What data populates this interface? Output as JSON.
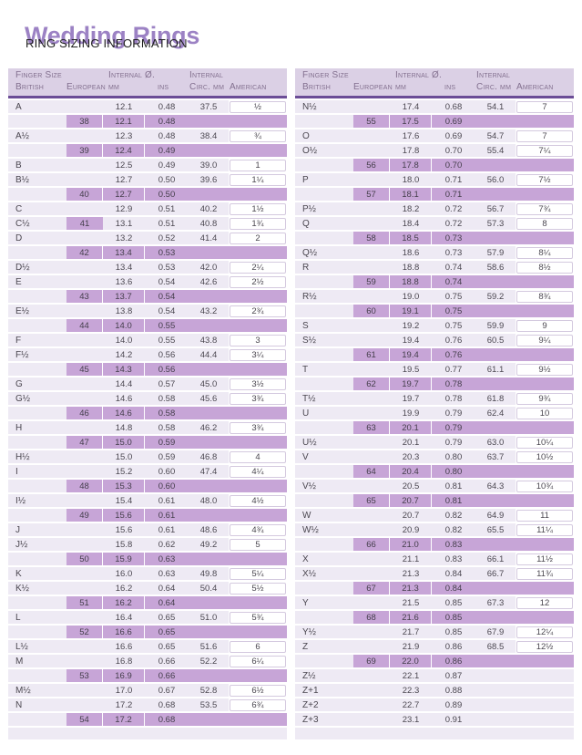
{
  "page": {
    "title": "Wedding Rings",
    "subtitle": "RING SIZING INFORMATION"
  },
  "colors": {
    "title": "#9c82c4",
    "header_bg": "#dbd0e5",
    "rule": "#6b4d96",
    "row_bg": "#eeeaf4",
    "band": "#c7a5d7"
  },
  "headers": {
    "finger_size": "Finger Size",
    "internal_diameter": "Internal Ø.",
    "internal": "Internal",
    "british": "British",
    "european": "European",
    "mm": "mm",
    "ins": "ins",
    "circ_mm": "Circ. mm",
    "american": "American"
  },
  "left_table_rows": [
    {
      "british": "A",
      "european": "",
      "mm": "12.1",
      "ins": "0.48",
      "circ": "37.5",
      "american": "½",
      "band": false
    },
    {
      "british": "",
      "european": "38",
      "mm": "12.1",
      "ins": "0.48",
      "circ": "",
      "american": "",
      "band": true
    },
    {
      "british": "A½",
      "european": "",
      "mm": "12.3",
      "ins": "0.48",
      "circ": "38.4",
      "american": "¾",
      "band": false
    },
    {
      "british": "",
      "european": "39",
      "mm": "12.4",
      "ins": "0.49",
      "circ": "",
      "american": "",
      "band": true
    },
    {
      "british": "B",
      "european": "",
      "mm": "12.5",
      "ins": "0.49",
      "circ": "39.0",
      "american": "1",
      "band": false
    },
    {
      "british": "B½",
      "european": "",
      "mm": "12.7",
      "ins": "0.50",
      "circ": "39.6",
      "american": "1¼",
      "band": false
    },
    {
      "british": "",
      "european": "40",
      "mm": "12.7",
      "ins": "0.50",
      "circ": "",
      "american": "",
      "band": true
    },
    {
      "british": "C",
      "european": "",
      "mm": "12.9",
      "ins": "0.51",
      "circ": "40.2",
      "american": "1½",
      "band": false
    },
    {
      "british": "C½",
      "european": "41",
      "mm": "13.1",
      "ins": "0.51",
      "circ": "40.8",
      "american": "1¾",
      "band": false
    },
    {
      "british": "D",
      "european": "",
      "mm": "13.2",
      "ins": "0.52",
      "circ": "41.4",
      "american": "2",
      "band": false
    },
    {
      "british": "",
      "european": "42",
      "mm": "13.4",
      "ins": "0.53",
      "circ": "",
      "american": "",
      "band": true
    },
    {
      "british": "D½",
      "european": "",
      "mm": "13.4",
      "ins": "0.53",
      "circ": "42.0",
      "american": "2¼",
      "band": false
    },
    {
      "british": "E",
      "european": "",
      "mm": "13.6",
      "ins": "0.54",
      "circ": "42.6",
      "american": "2½",
      "band": false
    },
    {
      "british": "",
      "european": "43",
      "mm": "13.7",
      "ins": "0.54",
      "circ": "",
      "american": "",
      "band": true
    },
    {
      "british": "E½",
      "european": "",
      "mm": "13.8",
      "ins": "0.54",
      "circ": "43.2",
      "american": "2¾",
      "band": false
    },
    {
      "british": "",
      "european": "44",
      "mm": "14.0",
      "ins": "0.55",
      "circ": "",
      "american": "",
      "band": true
    },
    {
      "british": "F",
      "european": "",
      "mm": "14.0",
      "ins": "0.55",
      "circ": "43.8",
      "american": "3",
      "band": false
    },
    {
      "british": "F½",
      "european": "",
      "mm": "14.2",
      "ins": "0.56",
      "circ": "44.4",
      "american": "3¼",
      "band": false
    },
    {
      "british": "",
      "european": "45",
      "mm": "14.3",
      "ins": "0.56",
      "circ": "",
      "american": "",
      "band": true
    },
    {
      "british": "G",
      "european": "",
      "mm": "14.4",
      "ins": "0.57",
      "circ": "45.0",
      "american": "3½",
      "band": false
    },
    {
      "british": "G½",
      "european": "",
      "mm": "14.6",
      "ins": "0.58",
      "circ": "45.6",
      "american": "3¾",
      "band": false
    },
    {
      "british": "",
      "european": "46",
      "mm": "14.6",
      "ins": "0.58",
      "circ": "",
      "american": "",
      "band": true
    },
    {
      "british": "H",
      "european": "",
      "mm": "14.8",
      "ins": "0.58",
      "circ": "46.2",
      "american": "3¾",
      "band": false
    },
    {
      "british": "",
      "european": "47",
      "mm": "15.0",
      "ins": "0.59",
      "circ": "",
      "american": "",
      "band": true
    },
    {
      "british": "H½",
      "european": "",
      "mm": "15.0",
      "ins": "0.59",
      "circ": "46.8",
      "american": "4",
      "band": false
    },
    {
      "british": "I",
      "european": "",
      "mm": "15.2",
      "ins": "0.60",
      "circ": "47.4",
      "american": "4¼",
      "band": false
    },
    {
      "british": "",
      "european": "48",
      "mm": "15.3",
      "ins": "0.60",
      "circ": "",
      "american": "",
      "band": true
    },
    {
      "british": "I½",
      "european": "",
      "mm": "15.4",
      "ins": "0.61",
      "circ": "48.0",
      "american": "4½",
      "band": false
    },
    {
      "british": "",
      "european": "49",
      "mm": "15.6",
      "ins": "0.61",
      "circ": "",
      "american": "",
      "band": true
    },
    {
      "british": "J",
      "european": "",
      "mm": "15.6",
      "ins": "0.61",
      "circ": "48.6",
      "american": "4¾",
      "band": false
    },
    {
      "british": "J½",
      "european": "",
      "mm": "15.8",
      "ins": "0.62",
      "circ": "49.2",
      "american": "5",
      "band": false
    },
    {
      "british": "",
      "european": "50",
      "mm": "15.9",
      "ins": "0.63",
      "circ": "",
      "american": "",
      "band": true
    },
    {
      "british": "K",
      "european": "",
      "mm": "16.0",
      "ins": "0.63",
      "circ": "49.8",
      "american": "5¼",
      "band": false
    },
    {
      "british": "K½",
      "european": "",
      "mm": "16.2",
      "ins": "0.64",
      "circ": "50.4",
      "american": "5½",
      "band": false
    },
    {
      "british": "",
      "european": "51",
      "mm": "16.2",
      "ins": "0.64",
      "circ": "",
      "american": "",
      "band": true
    },
    {
      "british": "L",
      "european": "",
      "mm": "16.4",
      "ins": "0.65",
      "circ": "51.0",
      "american": "5¾",
      "band": false
    },
    {
      "british": "",
      "european": "52",
      "mm": "16.6",
      "ins": "0.65",
      "circ": "",
      "american": "",
      "band": true
    },
    {
      "british": "L½",
      "european": "",
      "mm": "16.6",
      "ins": "0.65",
      "circ": "51.6",
      "american": "6",
      "band": false
    },
    {
      "british": "M",
      "european": "",
      "mm": "16.8",
      "ins": "0.66",
      "circ": "52.2",
      "american": "6¼",
      "band": false
    },
    {
      "british": "",
      "european": "53",
      "mm": "16.9",
      "ins": "0.66",
      "circ": "",
      "american": "",
      "band": true
    },
    {
      "british": "M½",
      "european": "",
      "mm": "17.0",
      "ins": "0.67",
      "circ": "52.8",
      "american": "6½",
      "band": false
    },
    {
      "british": "N",
      "european": "",
      "mm": "17.2",
      "ins": "0.68",
      "circ": "53.5",
      "american": "6¾",
      "band": false
    },
    {
      "british": "",
      "european": "54",
      "mm": "17.2",
      "ins": "0.68",
      "circ": "",
      "american": "",
      "band": true
    }
  ],
  "right_table_rows": [
    {
      "british": "N½",
      "european": "",
      "mm": "17.4",
      "ins": "0.68",
      "circ": "54.1",
      "american": "7",
      "band": false
    },
    {
      "british": "",
      "european": "55",
      "mm": "17.5",
      "ins": "0.69",
      "circ": "",
      "american": "",
      "band": true
    },
    {
      "british": "O",
      "european": "",
      "mm": "17.6",
      "ins": "0.69",
      "circ": "54.7",
      "american": "7",
      "band": false
    },
    {
      "british": "O½",
      "european": "",
      "mm": "17.8",
      "ins": "0.70",
      "circ": "55.4",
      "american": "7¼",
      "band": false
    },
    {
      "british": "",
      "european": "56",
      "mm": "17.8",
      "ins": "0.70",
      "circ": "",
      "american": "",
      "band": true
    },
    {
      "british": "P",
      "european": "",
      "mm": "18.0",
      "ins": "0.71",
      "circ": "56.0",
      "american": "7½",
      "band": false
    },
    {
      "british": "",
      "european": "57",
      "mm": "18.1",
      "ins": "0.71",
      "circ": "",
      "american": "",
      "band": true
    },
    {
      "british": "P½",
      "european": "",
      "mm": "18.2",
      "ins": "0.72",
      "circ": "56.7",
      "american": "7¾",
      "band": false
    },
    {
      "british": "Q",
      "european": "",
      "mm": "18.4",
      "ins": "0.72",
      "circ": "57.3",
      "american": "8",
      "band": false
    },
    {
      "british": "",
      "european": "58",
      "mm": "18.5",
      "ins": "0.73",
      "circ": "",
      "american": "",
      "band": true
    },
    {
      "british": "Q½",
      "european": "",
      "mm": "18.6",
      "ins": "0.73",
      "circ": "57.9",
      "american": "8¼",
      "band": false
    },
    {
      "british": "R",
      "european": "",
      "mm": "18.8",
      "ins": "0.74",
      "circ": "58.6",
      "american": "8½",
      "band": false
    },
    {
      "british": "",
      "european": "59",
      "mm": "18.8",
      "ins": "0.74",
      "circ": "",
      "american": "",
      "band": true
    },
    {
      "british": "R½",
      "european": "",
      "mm": "19.0",
      "ins": "0.75",
      "circ": "59.2",
      "american": "8¾",
      "band": false
    },
    {
      "british": "",
      "european": "60",
      "mm": "19.1",
      "ins": "0.75",
      "circ": "",
      "american": "",
      "band": true
    },
    {
      "british": "S",
      "european": "",
      "mm": "19.2",
      "ins": "0.75",
      "circ": "59.9",
      "american": "9",
      "band": false
    },
    {
      "british": "S½",
      "european": "",
      "mm": "19.4",
      "ins": "0.76",
      "circ": "60.5",
      "american": "9¼",
      "band": false
    },
    {
      "british": "",
      "european": "61",
      "mm": "19.4",
      "ins": "0.76",
      "circ": "",
      "american": "",
      "band": true
    },
    {
      "british": "T",
      "european": "",
      "mm": "19.5",
      "ins": "0.77",
      "circ": "61.1",
      "american": "9½",
      "band": false
    },
    {
      "british": "",
      "european": "62",
      "mm": "19.7",
      "ins": "0.78",
      "circ": "",
      "american": "",
      "band": true
    },
    {
      "british": "T½",
      "european": "",
      "mm": "19.7",
      "ins": "0.78",
      "circ": "61.8",
      "american": "9¾",
      "band": false
    },
    {
      "british": "U",
      "european": "",
      "mm": "19.9",
      "ins": "0.79",
      "circ": "62.4",
      "american": "10",
      "band": false
    },
    {
      "british": "",
      "european": "63",
      "mm": "20.1",
      "ins": "0.79",
      "circ": "",
      "american": "",
      "band": true
    },
    {
      "british": "U½",
      "european": "",
      "mm": "20.1",
      "ins": "0.79",
      "circ": "63.0",
      "american": "10¼",
      "band": false
    },
    {
      "british": "V",
      "european": "",
      "mm": "20.3",
      "ins": "0.80",
      "circ": "63.7",
      "american": "10½",
      "band": false
    },
    {
      "british": "",
      "european": "64",
      "mm": "20.4",
      "ins": "0.80",
      "circ": "",
      "american": "",
      "band": true
    },
    {
      "british": "V½",
      "european": "",
      "mm": "20.5",
      "ins": "0.81",
      "circ": "64.3",
      "american": "10¾",
      "band": false
    },
    {
      "british": "",
      "european": "65",
      "mm": "20.7",
      "ins": "0.81",
      "circ": "",
      "american": "",
      "band": true
    },
    {
      "british": "W",
      "european": "",
      "mm": "20.7",
      "ins": "0.82",
      "circ": "64.9",
      "american": "11",
      "band": false
    },
    {
      "british": "W½",
      "european": "",
      "mm": "20.9",
      "ins": "0.82",
      "circ": "65.5",
      "american": "11¼",
      "band": false
    },
    {
      "british": "",
      "european": "66",
      "mm": "21.0",
      "ins": "0.83",
      "circ": "",
      "american": "",
      "band": true
    },
    {
      "british": "X",
      "european": "",
      "mm": "21.1",
      "ins": "0.83",
      "circ": "66.1",
      "american": "11½",
      "band": false
    },
    {
      "british": "X½",
      "european": "",
      "mm": "21.3",
      "ins": "0.84",
      "circ": "66.7",
      "american": "11¾",
      "band": false
    },
    {
      "british": "",
      "european": "67",
      "mm": "21.3",
      "ins": "0.84",
      "circ": "",
      "american": "",
      "band": true
    },
    {
      "british": "Y",
      "european": "",
      "mm": "21.5",
      "ins": "0.85",
      "circ": "67.3",
      "american": "12",
      "band": false
    },
    {
      "british": "",
      "european": "68",
      "mm": "21.6",
      "ins": "0.85",
      "circ": "",
      "american": "",
      "band": true
    },
    {
      "british": "Y½",
      "european": "",
      "mm": "21.7",
      "ins": "0.85",
      "circ": "67.9",
      "american": "12¼",
      "band": false
    },
    {
      "british": "Z",
      "european": "",
      "mm": "21.9",
      "ins": "0.86",
      "circ": "68.5",
      "american": "12½",
      "band": false
    },
    {
      "british": "",
      "european": "69",
      "mm": "22.0",
      "ins": "0.86",
      "circ": "",
      "american": "",
      "band": true
    },
    {
      "british": "Z½",
      "european": "",
      "mm": "22.1",
      "ins": "0.87",
      "circ": "",
      "american": "",
      "band": false
    },
    {
      "british": "Z+1",
      "european": "",
      "mm": "22.3",
      "ins": "0.88",
      "circ": "",
      "american": "",
      "band": false
    },
    {
      "british": "Z+2",
      "european": "",
      "mm": "22.7",
      "ins": "0.89",
      "circ": "",
      "american": "",
      "band": false
    },
    {
      "british": "Z+3",
      "european": "",
      "mm": "23.1",
      "ins": "0.91",
      "circ": "",
      "american": "",
      "band": false
    }
  ]
}
